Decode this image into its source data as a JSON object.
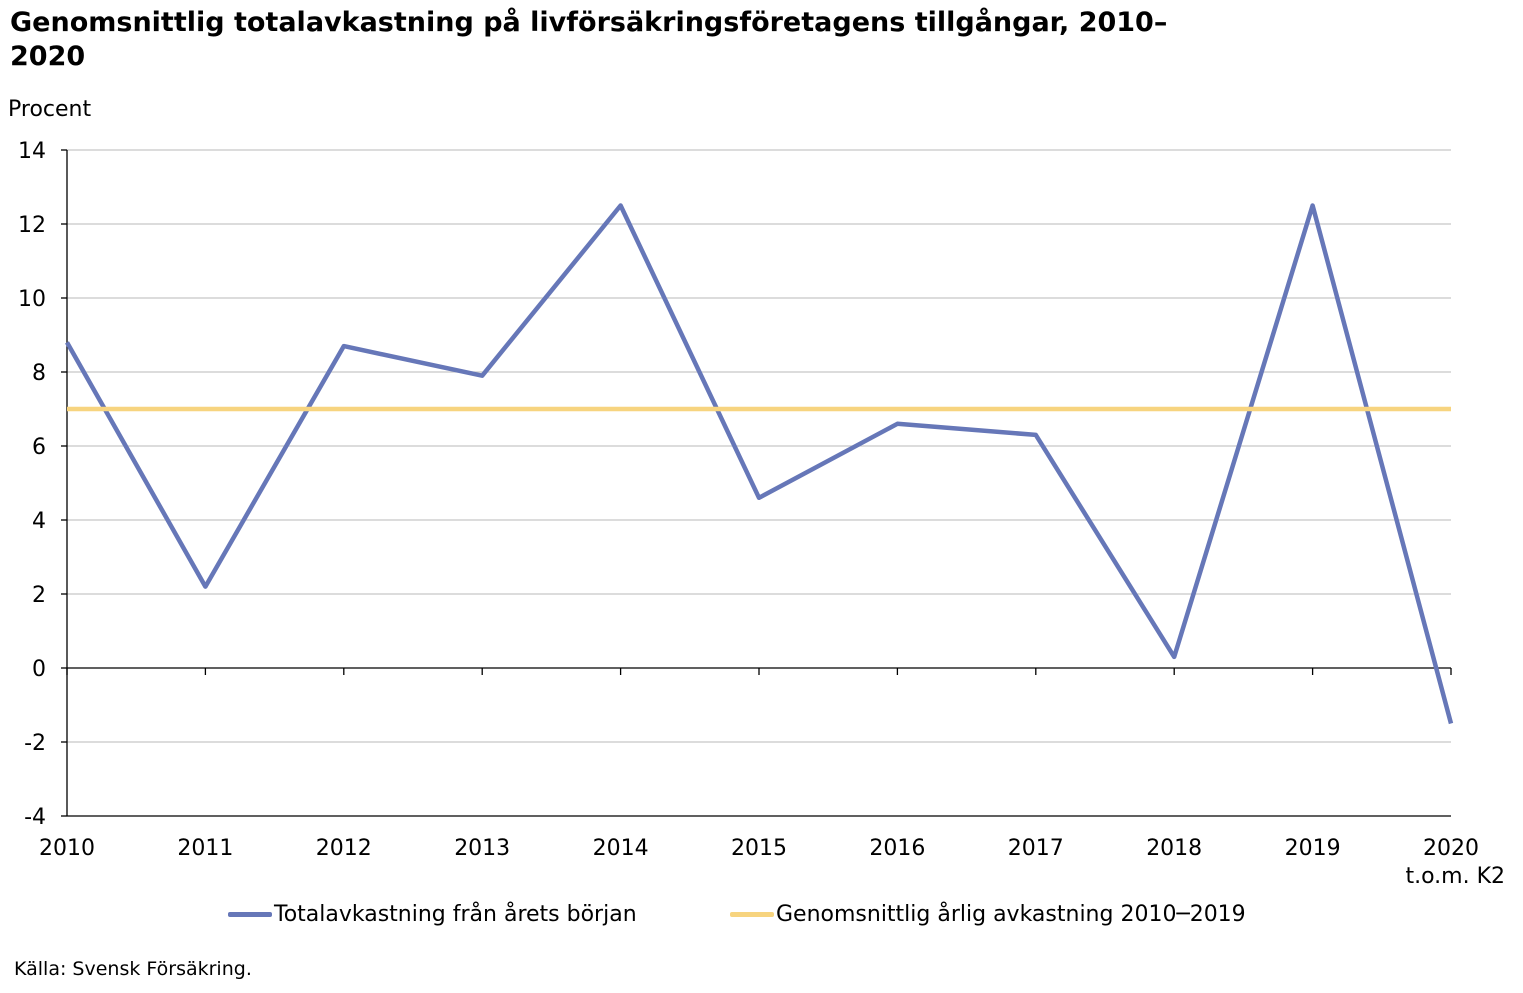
{
  "title": "Genomsnittlig totalavkastning på livförsäkringsföretagens tillgångar, 2010–2020",
  "source": "Källa: Svensk Försäkring.",
  "chart_data": {
    "type": "line",
    "ylabel": "Procent",
    "ylim": [
      -4,
      14
    ],
    "yticks": [
      14,
      12,
      10,
      8,
      6,
      4,
      2,
      0,
      -2,
      -4
    ],
    "categories": [
      "2010",
      "2011",
      "2012",
      "2013",
      "2014",
      "2015",
      "2016",
      "2017",
      "2018",
      "2019",
      "2020"
    ],
    "category_sublabel": "t.o.m. K2",
    "grid": true,
    "legend_position": "bottom",
    "series": [
      {
        "name": "Totalavkastning från årets början",
        "color": "#6677b8",
        "values": [
          8.8,
          2.2,
          8.7,
          7.9,
          12.5,
          4.6,
          6.6,
          6.3,
          0.3,
          12.5,
          -1.5
        ]
      },
      {
        "name": "Genomsnittlig årlig avkastning 2010─2019",
        "color": "#f7d47f",
        "values": [
          7.0,
          7.0,
          7.0,
          7.0,
          7.0,
          7.0,
          7.0,
          7.0,
          7.0,
          7.0,
          7.0
        ]
      }
    ]
  }
}
